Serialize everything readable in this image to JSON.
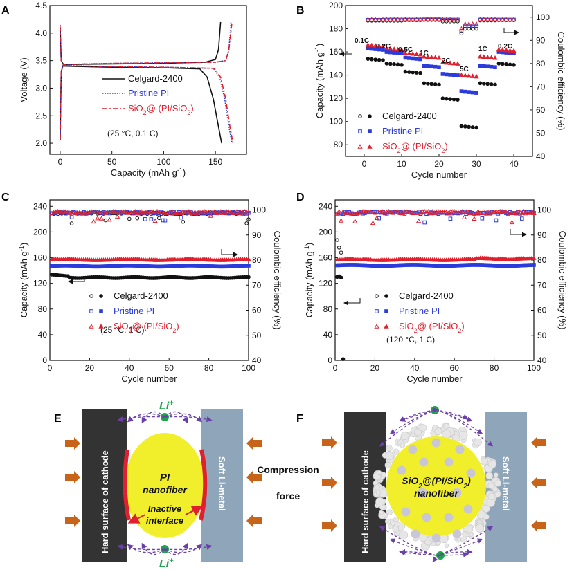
{
  "colors": {
    "celgard": "#111111",
    "pristine": "#2b3bdc",
    "sio2": "#e0202e",
    "pi_fill": "#f1ee2c",
    "cathode": "#333333",
    "li_metal": "#8fa6ba",
    "arrow": "#c8631a",
    "li_ion": "#1ea34a",
    "path": "#6a3fa8"
  },
  "legend": {
    "celgard": "Celgard-2400",
    "pristine": "Pristine PI",
    "sio2_main": "SiO",
    "sio2_sub": "2",
    "sio2_tail": "@ (PI/SiO",
    "sio2_sub2": "2",
    "sio2_end": ")"
  },
  "chart_data": [
    {
      "panel": "A",
      "type": "line",
      "xlabel": "Capacity (mAh g",
      "xlabel_sup": "-1",
      "xlabel_end": ")",
      "ylabel": "Voltage (V)",
      "xlim": [
        -10,
        180
      ],
      "ylim": [
        1.8,
        4.5
      ],
      "xticks": [
        0,
        50,
        100,
        150
      ],
      "yticks": [
        2.0,
        2.5,
        3.0,
        3.5,
        4.0,
        4.5
      ],
      "condition": "(25 °C, 0.1 C)",
      "series": [
        {
          "name": "Celgard-2400",
          "style": "solid",
          "charge": [
            [
              0,
              2.05
            ],
            [
              1,
              3.3
            ],
            [
              3,
              3.42
            ],
            [
              10,
              3.43
            ],
            [
              50,
              3.44
            ],
            [
              100,
              3.45
            ],
            [
              140,
              3.47
            ],
            [
              150,
              3.52
            ],
            [
              153,
              3.7
            ],
            [
              155,
              4.2
            ]
          ],
          "discharge": [
            [
              0,
              4.1
            ],
            [
              1,
              3.5
            ],
            [
              4,
              3.4
            ],
            [
              50,
              3.38
            ],
            [
              100,
              3.37
            ],
            [
              135,
              3.35
            ],
            [
              142,
              3.2
            ],
            [
              148,
              2.8
            ],
            [
              153,
              2.3
            ],
            [
              156,
              2.0
            ]
          ]
        },
        {
          "name": "Pristine PI",
          "style": "dotted",
          "charge": [
            [
              0,
              2.1
            ],
            [
              1,
              3.3
            ],
            [
              3,
              3.43
            ],
            [
              50,
              3.45
            ],
            [
              100,
              3.46
            ],
            [
              150,
              3.47
            ],
            [
              160,
              3.5
            ],
            [
              163,
              3.7
            ],
            [
              165,
              4.2
            ]
          ],
          "discharge": [
            [
              0,
              4.15
            ],
            [
              1,
              3.5
            ],
            [
              4,
              3.41
            ],
            [
              50,
              3.39
            ],
            [
              100,
              3.38
            ],
            [
              148,
              3.36
            ],
            [
              154,
              3.2
            ],
            [
              159,
              2.8
            ],
            [
              163,
              2.3
            ],
            [
              166,
              2.0
            ]
          ]
        },
        {
          "name": "SiO2@(PI/SiO2)",
          "style": "dashdot",
          "charge": [
            [
              0,
              2.08
            ],
            [
              1,
              3.3
            ],
            [
              3,
              3.43
            ],
            [
              50,
              3.45
            ],
            [
              100,
              3.46
            ],
            [
              150,
              3.47
            ],
            [
              160,
              3.5
            ],
            [
              163,
              3.7
            ],
            [
              166,
              4.2
            ]
          ],
          "discharge": [
            [
              0,
              4.12
            ],
            [
              1,
              3.5
            ],
            [
              4,
              3.41
            ],
            [
              50,
              3.39
            ],
            [
              100,
              3.38
            ],
            [
              149,
              3.36
            ],
            [
              155,
              3.2
            ],
            [
              160,
              2.8
            ],
            [
              164,
              2.3
            ],
            [
              167,
              2.0
            ]
          ]
        }
      ]
    },
    {
      "panel": "B",
      "type": "scatter",
      "xlabel": "Cycle number",
      "ylabel": "Capacity (mAh g",
      "ylabel_sup": "-1",
      "ylabel_end": ")",
      "ylabel2": "Coulombic efficiency (%)",
      "xlim": [
        -5,
        45
      ],
      "ylim": [
        70,
        200
      ],
      "y2lim": [
        40,
        105
      ],
      "xticks": [
        0,
        10,
        20,
        30,
        40
      ],
      "yticks": [
        80,
        100,
        120,
        140,
        160,
        180,
        200
      ],
      "y2ticks": [
        40,
        50,
        60,
        70,
        80,
        90,
        100
      ],
      "rates": [
        "0.1C",
        "0.2C",
        "0.5C",
        "1C",
        "2C",
        "5C",
        "1C",
        "0.2C"
      ],
      "series": [
        {
          "name": "Celgard-2400",
          "capacity_per_step": [
            154,
            150,
            143,
            133,
            120,
            96,
            133,
            150
          ],
          "ce": [
            98.5,
            98.5,
            98.7,
            98.8,
            98.2,
            95.0,
            98.6,
            98.7
          ]
        },
        {
          "name": "Pristine PI",
          "capacity_per_step": [
            163,
            160,
            155,
            148,
            141,
            126,
            148,
            160
          ],
          "ce": [
            98.8,
            98.9,
            98.9,
            99.0,
            98.9,
            96.0,
            98.9,
            98.9
          ]
        },
        {
          "name": "SiO2@(PI/SiO2)",
          "capacity_per_step": [
            166,
            163,
            159,
            156,
            151,
            140,
            156,
            162
          ],
          "ce": [
            99.0,
            99.0,
            99.1,
            99.1,
            99.0,
            97.0,
            99.1,
            99.0
          ]
        }
      ]
    },
    {
      "panel": "C",
      "type": "scatter",
      "xlabel": "Cycle number",
      "ylabel": "Capacity (mAh g",
      "ylabel_sup": "-1",
      "ylabel_end": ")",
      "ylabel2": "Coulombic efficiency (%)",
      "xlim": [
        0,
        100
      ],
      "ylim": [
        0,
        250
      ],
      "y2lim": [
        40,
        104
      ],
      "xticks": [
        0,
        20,
        40,
        60,
        80,
        100
      ],
      "yticks": [
        0,
        40,
        80,
        120,
        160,
        200,
        240
      ],
      "y2ticks": [
        40,
        50,
        60,
        70,
        80,
        90,
        100
      ],
      "condition": "(25 °C, 1 C)",
      "series": [
        {
          "name": "Celgard-2400",
          "capacity": 130,
          "ce": 98.7
        },
        {
          "name": "Pristine PI",
          "capacity": 147,
          "ce": 98.9
        },
        {
          "name": "SiO2@(PI/SiO2)",
          "capacity": 157,
          "ce": 99.0
        }
      ]
    },
    {
      "panel": "D",
      "type": "scatter",
      "xlabel": "Cycle number",
      "ylabel": "Capacity (mAh g",
      "ylabel_sup": "-1",
      "ylabel_end": ")",
      "ylabel2": "Coulombic efficiency (%)",
      "xlim": [
        0,
        100
      ],
      "ylim": [
        0,
        250
      ],
      "y2lim": [
        40,
        104
      ],
      "xticks": [
        0,
        20,
        40,
        60,
        80,
        100
      ],
      "yticks": [
        0,
        40,
        80,
        120,
        160,
        200,
        240
      ],
      "y2ticks": [
        40,
        50,
        60,
        70,
        80,
        90,
        100
      ],
      "condition": "(120 °C, 1 C)",
      "series": [
        {
          "name": "Celgard-2400",
          "capacity_early": [
            130,
            131,
            129,
            2
          ],
          "ce_early": [
            88,
            85,
            83
          ]
        },
        {
          "name": "Pristine PI",
          "capacity": 148,
          "ce": 98.8
        },
        {
          "name": "SiO2@(PI/SiO2)",
          "capacity": 157,
          "ce": 99.0
        }
      ]
    }
  ],
  "schematic": {
    "panel_e": "E",
    "panel_f": "F",
    "cathode": "Hard surface of cathode",
    "li_metal": "Soft Li-metal",
    "li_ion": "Li",
    "li_ion_sup": "+",
    "pi_title_1": "PI",
    "pi_title_2": "nanofiber",
    "inactive_1": "Inactive",
    "inactive_2": "interface",
    "compression_1": "Compression",
    "compression_2": "force",
    "f_title_1": "SiO",
    "f_title_sub": "2",
    "f_title_2": "@(PI/SiO",
    "f_title_sub2": "2",
    "f_title_3": ")",
    "f_title_4": "nanofiber"
  }
}
